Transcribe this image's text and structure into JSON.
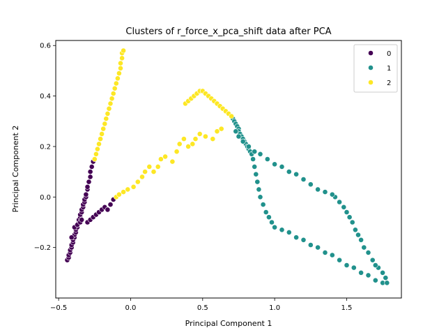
{
  "chart_data": {
    "type": "scatter",
    "title": "Clusters of r_force_x_pca_shift data after PCA",
    "xlabel": "Principal Component 1",
    "ylabel": "Principal Component 2",
    "xlim": [
      -0.52,
      1.88
    ],
    "ylim": [
      -0.4,
      0.62
    ],
    "xticks": [
      -0.5,
      0.0,
      0.5,
      1.0,
      1.5
    ],
    "xtick_labels": [
      "−0.5",
      "0.0",
      "0.5",
      "1.0",
      "1.5"
    ],
    "yticks": [
      -0.2,
      0.0,
      0.2,
      0.4,
      0.6
    ],
    "ytick_labels": [
      "−0.2",
      "0.0",
      "0.2",
      "0.4",
      "0.6"
    ],
    "grid": false,
    "legend_position": "top-right",
    "series": [
      {
        "name": "0",
        "color": "#440154",
        "points": [
          [
            -0.44,
            -0.25
          ],
          [
            -0.43,
            -0.24
          ],
          [
            -0.43,
            -0.23
          ],
          [
            -0.42,
            -0.22
          ],
          [
            -0.42,
            -0.21
          ],
          [
            -0.41,
            -0.2
          ],
          [
            -0.41,
            -0.19
          ],
          [
            -0.4,
            -0.18
          ],
          [
            -0.4,
            -0.17
          ],
          [
            -0.39,
            -0.16
          ],
          [
            -0.39,
            -0.15
          ],
          [
            -0.38,
            -0.14
          ],
          [
            -0.38,
            -0.13
          ],
          [
            -0.37,
            -0.12
          ],
          [
            -0.37,
            -0.11
          ],
          [
            -0.36,
            -0.1
          ],
          [
            -0.36,
            -0.09
          ],
          [
            -0.35,
            -0.08
          ],
          [
            -0.35,
            -0.07
          ],
          [
            -0.34,
            -0.06
          ],
          [
            -0.34,
            -0.05
          ],
          [
            -0.33,
            -0.04
          ],
          [
            -0.33,
            -0.03
          ],
          [
            -0.32,
            -0.02
          ],
          [
            -0.32,
            -0.01
          ],
          [
            -0.31,
            0.0
          ],
          [
            -0.31,
            0.01
          ],
          [
            -0.3,
            0.03
          ],
          [
            -0.3,
            0.04
          ],
          [
            -0.29,
            0.06
          ],
          [
            -0.28,
            0.08
          ],
          [
            -0.28,
            0.1
          ],
          [
            -0.27,
            0.12
          ],
          [
            -0.26,
            0.14
          ],
          [
            -0.41,
            -0.16
          ],
          [
            -0.39,
            -0.12
          ],
          [
            -0.37,
            -0.11
          ],
          [
            -0.35,
            -0.1
          ],
          [
            -0.34,
            -0.09
          ],
          [
            -0.3,
            -0.1
          ],
          [
            -0.28,
            -0.09
          ],
          [
            -0.26,
            -0.08
          ],
          [
            -0.24,
            -0.07
          ],
          [
            -0.22,
            -0.06
          ],
          [
            -0.2,
            -0.05
          ],
          [
            -0.18,
            -0.04
          ],
          [
            -0.16,
            -0.05
          ],
          [
            -0.14,
            -0.03
          ],
          [
            -0.12,
            -0.01
          ]
        ]
      },
      {
        "name": "1",
        "color": "#21918c",
        "points": [
          [
            0.71,
            0.31
          ],
          [
            0.72,
            0.3
          ],
          [
            0.73,
            0.29
          ],
          [
            0.74,
            0.28
          ],
          [
            0.75,
            0.27
          ],
          [
            0.75,
            0.26
          ],
          [
            0.76,
            0.25
          ],
          [
            0.77,
            0.24
          ],
          [
            0.78,
            0.23
          ],
          [
            0.79,
            0.22
          ],
          [
            0.8,
            0.21
          ],
          [
            0.81,
            0.2
          ],
          [
            0.82,
            0.19
          ],
          [
            0.83,
            0.18
          ],
          [
            0.84,
            0.17
          ],
          [
            0.85,
            0.15
          ],
          [
            0.86,
            0.12
          ],
          [
            0.87,
            0.09
          ],
          [
            0.88,
            0.06
          ],
          [
            0.89,
            0.03
          ],
          [
            0.9,
            0.0
          ],
          [
            0.92,
            -0.03
          ],
          [
            0.94,
            -0.06
          ],
          [
            0.96,
            -0.08
          ],
          [
            0.98,
            -0.1
          ],
          [
            1.0,
            -0.12
          ],
          [
            1.05,
            -0.13
          ],
          [
            1.1,
            -0.14
          ],
          [
            1.15,
            -0.16
          ],
          [
            1.2,
            -0.17
          ],
          [
            1.25,
            -0.19
          ],
          [
            1.3,
            -0.2
          ],
          [
            1.35,
            -0.22
          ],
          [
            1.4,
            -0.23
          ],
          [
            1.45,
            -0.25
          ],
          [
            1.5,
            -0.27
          ],
          [
            1.55,
            -0.28
          ],
          [
            1.6,
            -0.3
          ],
          [
            1.65,
            -0.31
          ],
          [
            1.7,
            -0.33
          ],
          [
            1.75,
            -0.34
          ],
          [
            1.78,
            -0.34
          ],
          [
            1.77,
            -0.32
          ],
          [
            1.75,
            -0.3
          ],
          [
            1.72,
            -0.28
          ],
          [
            1.7,
            -0.27
          ],
          [
            1.68,
            -0.25
          ],
          [
            1.65,
            -0.22
          ],
          [
            1.62,
            -0.2
          ],
          [
            1.6,
            -0.17
          ],
          [
            1.58,
            -0.15
          ],
          [
            1.56,
            -0.13
          ],
          [
            1.54,
            -0.1
          ],
          [
            1.52,
            -0.08
          ],
          [
            1.5,
            -0.06
          ],
          [
            1.48,
            -0.04
          ],
          [
            1.45,
            -0.02
          ],
          [
            1.42,
            0.0
          ],
          [
            1.4,
            0.01
          ],
          [
            1.35,
            0.02
          ],
          [
            1.3,
            0.03
          ],
          [
            1.25,
            0.05
          ],
          [
            1.2,
            0.07
          ],
          [
            1.15,
            0.09
          ],
          [
            1.1,
            0.1
          ],
          [
            1.05,
            0.12
          ],
          [
            1.0,
            0.13
          ],
          [
            0.95,
            0.15
          ],
          [
            0.9,
            0.17
          ],
          [
            0.86,
            0.18
          ],
          [
            0.82,
            0.2
          ],
          [
            0.78,
            0.22
          ],
          [
            0.75,
            0.24
          ],
          [
            0.73,
            0.26
          ]
        ]
      },
      {
        "name": "2",
        "color": "#fde725",
        "points": [
          [
            -0.25,
            0.15
          ],
          [
            -0.24,
            0.17
          ],
          [
            -0.23,
            0.19
          ],
          [
            -0.22,
            0.21
          ],
          [
            -0.21,
            0.23
          ],
          [
            -0.2,
            0.25
          ],
          [
            -0.19,
            0.27
          ],
          [
            -0.18,
            0.29
          ],
          [
            -0.17,
            0.31
          ],
          [
            -0.16,
            0.33
          ],
          [
            -0.15,
            0.35
          ],
          [
            -0.14,
            0.37
          ],
          [
            -0.13,
            0.39
          ],
          [
            -0.12,
            0.41
          ],
          [
            -0.11,
            0.43
          ],
          [
            -0.1,
            0.45
          ],
          [
            -0.09,
            0.47
          ],
          [
            -0.08,
            0.49
          ],
          [
            -0.07,
            0.51
          ],
          [
            -0.07,
            0.53
          ],
          [
            -0.06,
            0.55
          ],
          [
            -0.06,
            0.57
          ],
          [
            -0.05,
            0.58
          ],
          [
            -0.1,
            0.0
          ],
          [
            -0.08,
            0.01
          ],
          [
            -0.05,
            0.02
          ],
          [
            -0.02,
            0.03
          ],
          [
            0.02,
            0.04
          ],
          [
            0.05,
            0.06
          ],
          [
            0.08,
            0.08
          ],
          [
            0.1,
            0.1
          ],
          [
            0.13,
            0.12
          ],
          [
            0.16,
            0.1
          ],
          [
            0.19,
            0.12
          ],
          [
            0.21,
            0.15
          ],
          [
            0.24,
            0.16
          ],
          [
            0.29,
            0.14
          ],
          [
            0.32,
            0.18
          ],
          [
            0.34,
            0.21
          ],
          [
            0.37,
            0.23
          ],
          [
            0.4,
            0.2
          ],
          [
            0.43,
            0.21
          ],
          [
            0.45,
            0.23
          ],
          [
            0.48,
            0.25
          ],
          [
            0.52,
            0.24
          ],
          [
            0.57,
            0.23
          ],
          [
            0.6,
            0.26
          ],
          [
            0.63,
            0.27
          ],
          [
            0.38,
            0.37
          ],
          [
            0.4,
            0.38
          ],
          [
            0.42,
            0.39
          ],
          [
            0.44,
            0.4
          ],
          [
            0.46,
            0.41
          ],
          [
            0.48,
            0.42
          ],
          [
            0.5,
            0.42
          ],
          [
            0.52,
            0.41
          ],
          [
            0.54,
            0.4
          ],
          [
            0.56,
            0.39
          ],
          [
            0.58,
            0.38
          ],
          [
            0.6,
            0.37
          ],
          [
            0.62,
            0.36
          ],
          [
            0.64,
            0.35
          ],
          [
            0.66,
            0.34
          ],
          [
            0.68,
            0.33
          ],
          [
            0.7,
            0.32
          ]
        ]
      }
    ]
  }
}
